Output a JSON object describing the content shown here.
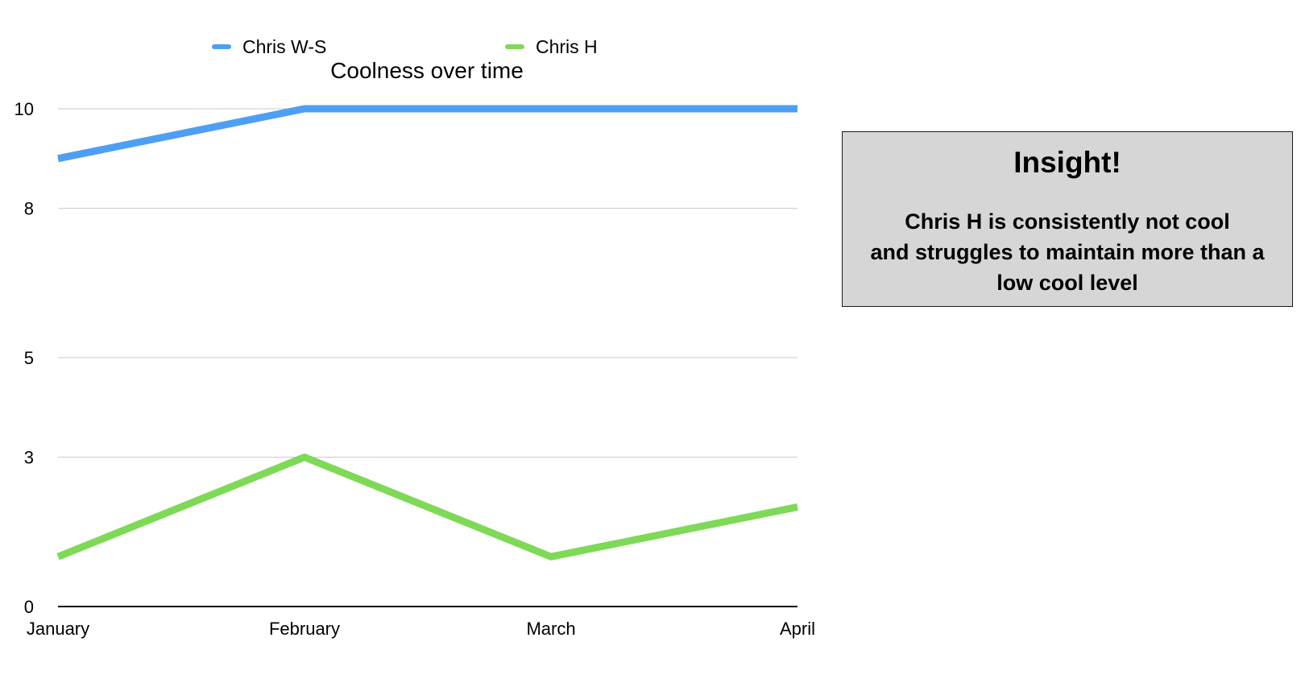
{
  "chart_data": {
    "type": "line",
    "title": "Coolness over time",
    "categories": [
      "January",
      "February",
      "March",
      "April"
    ],
    "series": [
      {
        "name": "Chris W-S",
        "color": "#4d9ff5",
        "values": [
          9.0,
          10.0,
          10.0,
          10.0
        ]
      },
      {
        "name": "Chris H",
        "color": "#7ed957",
        "values": [
          1.0,
          3.0,
          1.0,
          2.0
        ]
      }
    ],
    "y_ticks": [
      "0",
      "3",
      "5",
      "8",
      "10"
    ],
    "ylim": [
      0,
      10
    ],
    "xlabel": "",
    "ylabel": "",
    "grid": true,
    "legend_position": "top"
  },
  "insight": {
    "title": "Insight!",
    "lines": [
      "Chris H is consistently not cool",
      "and struggles to maintain more than a",
      "low cool level"
    ]
  }
}
